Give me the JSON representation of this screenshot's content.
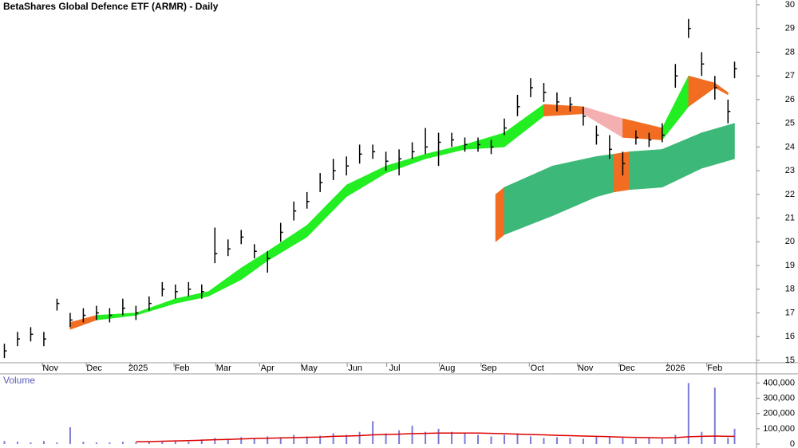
{
  "chart_data": [
    {
      "type": "ohlc",
      "title": "BetaShares Global Defence ETF (ARMR) - Daily",
      "x": [
        0,
        6,
        12,
        18,
        24,
        30,
        36,
        42,
        48,
        54,
        60,
        66,
        72,
        78,
        84,
        90,
        96,
        102,
        108,
        114,
        120,
        126,
        132,
        138,
        144,
        150,
        156,
        162,
        168,
        174,
        180,
        186,
        192,
        198,
        204,
        210,
        216,
        222,
        228,
        234,
        240,
        246,
        252,
        258,
        264,
        270,
        276,
        282,
        288,
        294,
        300,
        306,
        312,
        318,
        324,
        330,
        333
      ],
      "high": [
        15.7,
        16.2,
        16.4,
        16.2,
        17.6,
        17.0,
        17.2,
        17.3,
        17.2,
        17.6,
        17.3,
        17.7,
        18.3,
        18.2,
        18.3,
        18.2,
        20.6,
        20.1,
        20.5,
        19.9,
        19.6,
        20.8,
        21.7,
        22.1,
        22.9,
        23.5,
        23.6,
        24.1,
        24.1,
        23.8,
        23.9,
        24.2,
        24.8,
        24.6,
        24.6,
        24.4,
        24.4,
        24.3,
        25.2,
        26.2,
        26.9,
        26.7,
        26.3,
        26.1,
        25.7,
        24.9,
        24.5,
        23.8,
        24.7,
        24.6,
        25.0,
        27.5,
        29.4,
        28.0,
        27.0,
        26.0,
        27.6
      ],
      "low": [
        15.1,
        15.6,
        15.8,
        15.6,
        17.1,
        16.4,
        16.6,
        16.7,
        16.6,
        16.9,
        16.7,
        17.1,
        17.7,
        17.6,
        17.7,
        17.6,
        19.1,
        19.4,
        19.9,
        19.3,
        18.7,
        20.0,
        20.9,
        21.4,
        22.1,
        22.6,
        22.8,
        23.3,
        23.5,
        23.0,
        22.8,
        23.5,
        23.7,
        23.2,
        24.0,
        23.8,
        23.8,
        23.7,
        24.5,
        25.3,
        26.1,
        25.9,
        25.5,
        25.5,
        24.9,
        24.1,
        23.5,
        22.8,
        24.1,
        24.0,
        24.2,
        26.5,
        28.6,
        27.0,
        26.0,
        25.0,
        26.9
      ],
      "close": [
        15.4,
        15.9,
        16.1,
        15.9,
        17.4,
        16.7,
        16.9,
        17.0,
        16.9,
        17.2,
        17.0,
        17.4,
        18.0,
        17.9,
        18.0,
        17.9,
        19.5,
        19.7,
        20.2,
        19.6,
        19.3,
        20.4,
        21.3,
        21.7,
        22.5,
        23.0,
        23.2,
        23.7,
        23.8,
        23.4,
        23.5,
        23.8,
        24.0,
        24.2,
        24.3,
        24.1,
        24.1,
        24.0,
        24.8,
        25.7,
        26.5,
        26.3,
        25.9,
        25.8,
        25.3,
        24.5,
        23.9,
        23.3,
        24.4,
        24.3,
        24.5,
        27.0,
        29.0,
        27.5,
        26.5,
        25.5,
        27.3
      ],
      "color": "#000000",
      "bands": [
        {
          "x": [
            30,
            42,
            60,
            78,
            93,
            108,
            120,
            138,
            156,
            174,
            192,
            210,
            228,
            246,
            264,
            282,
            300,
            312,
            324,
            330
          ],
          "upper": [
            16.6,
            16.9,
            17.0,
            17.6,
            17.9,
            18.9,
            19.6,
            20.7,
            22.4,
            23.2,
            23.7,
            24.1,
            24.6,
            25.8,
            25.7,
            25.2,
            24.8,
            27.0,
            26.7,
            26.3
          ],
          "lower": [
            16.3,
            16.7,
            16.9,
            17.4,
            17.7,
            18.4,
            19.2,
            20.2,
            21.9,
            22.9,
            23.5,
            23.9,
            24.0,
            25.3,
            25.4,
            24.4,
            24.3,
            25.7,
            26.5,
            26.2
          ],
          "colors": [
            "#f26d21",
            "#22ee22",
            "#22ee22",
            "#22ee22",
            "#22ee22",
            "#22ee22",
            "#22ee22",
            "#22ee22",
            "#22ee22",
            "#22ee22",
            "#22ee22",
            "#22ee22",
            "#22ee22",
            "#f26d21",
            "#f4b0b0",
            "#f26d21",
            "#22ee22",
            "#f26d21",
            "#f26d21"
          ]
        },
        {
          "x": [
            224,
            228,
            250,
            270,
            278,
            285,
            300,
            318,
            333
          ],
          "upper": [
            22.0,
            22.3,
            23.2,
            23.6,
            23.7,
            23.8,
            23.9,
            24.6,
            25.0
          ],
          "lower": [
            20.0,
            20.3,
            21.1,
            21.9,
            22.1,
            22.2,
            22.3,
            23.1,
            23.5
          ],
          "colors": [
            "#f26d21",
            "#3cb878",
            "#3cb878",
            "#3cb878",
            "#f26d21",
            "#3cb878",
            "#3cb878",
            "#3cb878"
          ]
        }
      ],
      "xlim": [
        -2,
        343
      ],
      "ylim": [
        14.9,
        30.2
      ],
      "xticks": [
        {
          "value": 21,
          "label": "Nov"
        },
        {
          "value": 41,
          "label": "Dec"
        },
        {
          "value": 61,
          "label": "2025"
        },
        {
          "value": 81,
          "label": "Feb"
        },
        {
          "value": 100,
          "label": "Mar"
        },
        {
          "value": 120,
          "label": "Apr"
        },
        {
          "value": 139,
          "label": "May"
        },
        {
          "value": 160,
          "label": "Jun"
        },
        {
          "value": 178,
          "label": "Jul"
        },
        {
          "value": 202,
          "label": "Aug"
        },
        {
          "value": 221,
          "label": "Sep"
        },
        {
          "value": 243,
          "label": "Oct"
        },
        {
          "value": 265,
          "label": "Nov"
        },
        {
          "value": 284,
          "label": "Dec"
        },
        {
          "value": 306,
          "label": "2026"
        },
        {
          "value": 324,
          "label": "Feb"
        }
      ],
      "yticks": [
        15,
        16,
        17,
        18,
        19,
        20,
        21,
        22,
        23,
        24,
        25,
        26,
        27,
        28,
        29,
        30
      ]
    },
    {
      "type": "bar",
      "title": "Volume",
      "x": [
        0,
        6,
        12,
        18,
        24,
        30,
        36,
        42,
        48,
        54,
        60,
        66,
        72,
        78,
        84,
        90,
        96,
        102,
        108,
        114,
        120,
        126,
        132,
        138,
        144,
        150,
        156,
        162,
        168,
        174,
        180,
        186,
        192,
        198,
        204,
        210,
        216,
        222,
        228,
        234,
        240,
        246,
        252,
        258,
        264,
        270,
        276,
        282,
        288,
        294,
        300,
        306,
        312,
        318,
        324,
        330,
        333
      ],
      "values": [
        20000,
        15000,
        10000,
        20000,
        10000,
        110000,
        15000,
        10000,
        10000,
        15000,
        10000,
        12000,
        15000,
        20000,
        15000,
        30000,
        40000,
        35000,
        45000,
        40000,
        50000,
        45000,
        60000,
        50000,
        55000,
        70000,
        60000,
        80000,
        150000,
        70000,
        90000,
        120000,
        80000,
        100000,
        80000,
        70000,
        60000,
        50000,
        60000,
        70000,
        50000,
        40000,
        45000,
        40000,
        35000,
        50000,
        45000,
        40000,
        35000,
        40000,
        35000,
        60000,
        400000,
        80000,
        370000,
        40000,
        100000
      ],
      "color": "#7b7bd6",
      "ma": {
        "values": [
          null,
          null,
          null,
          null,
          null,
          null,
          null,
          null,
          null,
          null,
          15000,
          16000,
          18000,
          20000,
          22000,
          25000,
          28000,
          30000,
          33000,
          36000,
          38000,
          40000,
          42000,
          44000,
          46000,
          50000,
          52000,
          55000,
          60000,
          62000,
          65000,
          68000,
          70000,
          72000,
          72000,
          72000,
          72000,
          70000,
          68000,
          65000,
          62000,
          60000,
          57000,
          55000,
          52000,
          50000,
          48000,
          45000,
          43000,
          42000,
          40000,
          42000,
          48000,
          50000,
          52000,
          50000,
          50000
        ],
        "color": "#dd0000"
      },
      "xlim": [
        -2,
        343
      ],
      "ylim": [
        0,
        460000
      ],
      "yticks": [
        0,
        {
          "value": 100000,
          "label": "100,000"
        },
        {
          "value": 200000,
          "label": "200,000"
        },
        {
          "value": 300000,
          "label": "300,000"
        },
        {
          "value": 400000,
          "label": "400,000"
        }
      ]
    }
  ]
}
